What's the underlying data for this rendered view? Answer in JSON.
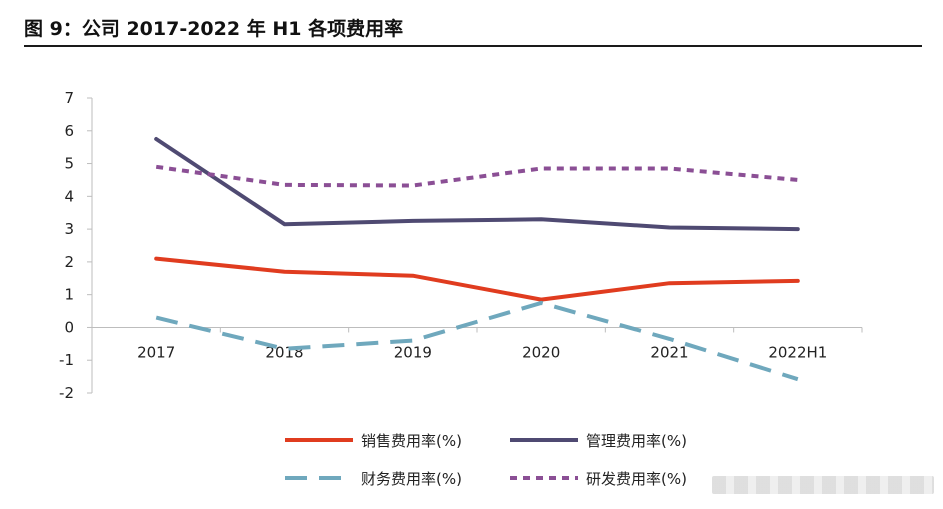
{
  "title": "图 9：公司 2017-2022 年 H1 各项费用率",
  "chart_data": {
    "type": "line",
    "title": "图 9：公司 2017-2022 年 H1 各项费用率",
    "categories": [
      "2017",
      "2018",
      "2019",
      "2020",
      "2021",
      "2022H1"
    ],
    "ylim": [
      -2,
      7
    ],
    "yticks": [
      -2,
      -1,
      0,
      1,
      2,
      3,
      4,
      5,
      6,
      7
    ],
    "xlabel": "",
    "ylabel": "",
    "legend_position": "bottom",
    "series": [
      {
        "name": "销售费用率(%)",
        "values": [
          2.1,
          1.7,
          1.58,
          0.85,
          1.35,
          1.42
        ],
        "color": "#e03c1f",
        "style": "solid"
      },
      {
        "name": "管理费用率(%)",
        "values": [
          5.75,
          3.15,
          3.25,
          3.3,
          3.05,
          3.0
        ],
        "color": "#4f4a72",
        "style": "solid"
      },
      {
        "name": "财务费用率(%)",
        "values": [
          0.3,
          -0.65,
          -0.4,
          0.75,
          -0.35,
          -1.58
        ],
        "color": "#6fa8bd",
        "style": "longdash"
      },
      {
        "name": "研发费用率(%)",
        "values": [
          4.9,
          4.35,
          4.33,
          4.85,
          4.85,
          4.5
        ],
        "color": "#8b4f95",
        "style": "dash"
      }
    ]
  }
}
